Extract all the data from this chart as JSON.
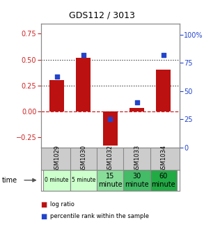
{
  "title": "GDS112 / 3013",
  "samples": [
    "GSM1029",
    "GSM1030",
    "GSM1032",
    "GSM1033",
    "GSM1034"
  ],
  "time_labels": [
    "0 minute",
    "5 minute",
    "15\nminute",
    "30\nminute",
    "60\nminute"
  ],
  "time_colors": [
    "#ccffcc",
    "#ccffcc",
    "#88dd99",
    "#44bb66",
    "#22aa44"
  ],
  "log_ratios": [
    0.3,
    0.52,
    -0.33,
    0.03,
    0.4
  ],
  "percentile_ranks": [
    63,
    82,
    25,
    40,
    82
  ],
  "bar_color": "#bb1111",
  "dot_color": "#2244cc",
  "ylim_left": [
    -0.35,
    0.85
  ],
  "ylim_right": [
    0,
    110
  ],
  "yticks_left": [
    -0.25,
    0.0,
    0.25,
    0.5,
    0.75
  ],
  "yticks_right": [
    0,
    25,
    50,
    75,
    100
  ],
  "hlines_y": [
    0.0,
    0.25,
    0.5
  ],
  "hline_styles": [
    "dashed",
    "dotted",
    "dotted"
  ],
  "hline_colors": [
    "#cc2222",
    "#333333",
    "#333333"
  ],
  "sample_bg_color": "#cccccc",
  "border_color": "#888888",
  "plot_bg_color": "#ffffff"
}
